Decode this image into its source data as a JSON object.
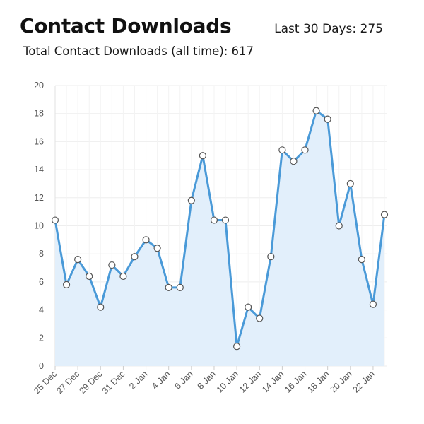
{
  "header": {
    "title": "Contact Downloads",
    "last_30_days": "Last 30 Days: 275",
    "total": "Total Contact Downloads (all time): 617"
  },
  "colors": {
    "line": "#4a9ad8",
    "area": "#e2effb",
    "grid": "#eeeeee",
    "marker_fill": "#ffffff",
    "axis_text": "#555555"
  },
  "chart_data": {
    "type": "line",
    "title": "Contact Downloads",
    "xlabel": "",
    "ylabel": "",
    "ylim": [
      0,
      20
    ],
    "yticks": [
      0,
      2,
      4,
      6,
      8,
      10,
      12,
      14,
      16,
      18,
      20
    ],
    "x_tick_labels": [
      "25 Dec",
      "27 Dec",
      "29 Dec",
      "31 Dec",
      "2 Jan",
      "4 Jan",
      "6 Jan",
      "8 Jan",
      "10 Jan",
      "12 Jan",
      "14 Jan",
      "16 Jan",
      "18 Jan",
      "20 Jan",
      "22 Jan"
    ],
    "x": [
      "25 Dec",
      "26 Dec",
      "27 Dec",
      "28 Dec",
      "29 Dec",
      "30 Dec",
      "31 Dec",
      "1 Jan",
      "2 Jan",
      "3 Jan",
      "4 Jan",
      "5 Jan",
      "6 Jan",
      "7 Jan",
      "8 Jan",
      "9 Jan",
      "10 Jan",
      "11 Jan",
      "12 Jan",
      "13 Jan",
      "14 Jan",
      "15 Jan",
      "16 Jan",
      "17 Jan",
      "18 Jan",
      "19 Jan",
      "20 Jan",
      "21 Jan",
      "22 Jan",
      "23 Jan"
    ],
    "series": [
      {
        "values": [
          10.4,
          5.8,
          7.6,
          6.4,
          4.2,
          7.2,
          6.4,
          7.8,
          9.0,
          8.4,
          5.6,
          5.6,
          11.8,
          15.0,
          10.4,
          10.4,
          1.4,
          4.2,
          3.4,
          7.8,
          15.4,
          14.6,
          15.4,
          18.2,
          17.6,
          10.0,
          13.0,
          7.6,
          4.4,
          10.8
        ]
      }
    ],
    "grid": true,
    "legend": "none",
    "markers": true
  }
}
